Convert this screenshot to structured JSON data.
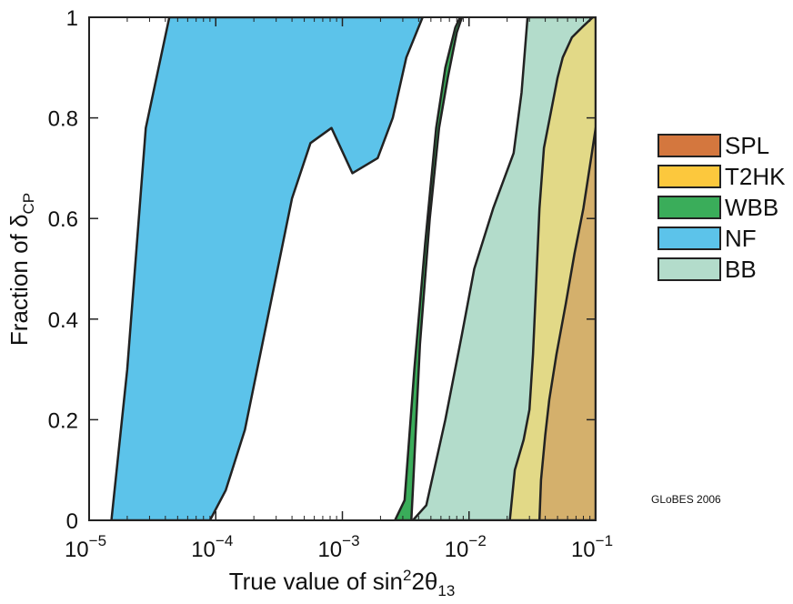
{
  "chart_data": {
    "type": "area",
    "xlabel": {
      "prefix": "True value of sin",
      "sup": "2",
      "mid": "2θ",
      "sub": "13"
    },
    "ylabel": {
      "prefix": "Fraction of δ",
      "sub": "CP"
    },
    "x_scale": "log",
    "xlim": [
      1e-05,
      0.1
    ],
    "ylim": [
      0,
      1
    ],
    "x_ticks": [
      {
        "value": 1e-05,
        "base": "10",
        "exp": "−5"
      },
      {
        "value": 0.0001,
        "base": "10",
        "exp": "−4"
      },
      {
        "value": 0.001,
        "base": "10",
        "exp": "−3"
      },
      {
        "value": 0.01,
        "base": "10",
        "exp": "−2"
      },
      {
        "value": 0.1,
        "base": "10",
        "exp": "−1"
      }
    ],
    "y_ticks": [
      {
        "value": 0,
        "label": "0"
      },
      {
        "value": 0.2,
        "label": "0.2"
      },
      {
        "value": 0.4,
        "label": "0.4"
      },
      {
        "value": 0.6,
        "label": "0.6"
      },
      {
        "value": 0.8,
        "label": "0.8"
      },
      {
        "value": 1,
        "label": "1"
      }
    ],
    "grid": false,
    "legend_position": "right",
    "series": [
      {
        "name": "BB",
        "color": "#b3dccb",
        "boundary": [
          [
            0.0036,
            0
          ],
          [
            0.0046,
            0.03
          ],
          [
            0.0065,
            0.2
          ],
          [
            0.0088,
            0.37
          ],
          [
            0.011,
            0.5
          ],
          [
            0.0155,
            0.62
          ],
          [
            0.0225,
            0.73
          ],
          [
            0.026,
            0.85
          ],
          [
            0.029,
            1
          ],
          [
            0.1,
            1
          ],
          [
            0.1,
            0
          ]
        ]
      },
      {
        "name": "T2HK",
        "color": "#e2d987",
        "boundary": [
          [
            0.021,
            0
          ],
          [
            0.023,
            0.1
          ],
          [
            0.027,
            0.16
          ],
          [
            0.03,
            0.22
          ],
          [
            0.032,
            0.33
          ],
          [
            0.034,
            0.48
          ],
          [
            0.036,
            0.62
          ],
          [
            0.039,
            0.74
          ],
          [
            0.045,
            0.82
          ],
          [
            0.05,
            0.88
          ],
          [
            0.055,
            0.92
          ],
          [
            0.065,
            0.96
          ],
          [
            0.078,
            0.98
          ],
          [
            0.095,
            1
          ],
          [
            0.1,
            1
          ],
          [
            0.1,
            0
          ]
        ]
      },
      {
        "name": "SPL",
        "color": "#d4b06c",
        "boundary": [
          [
            0.036,
            0
          ],
          [
            0.037,
            0.08
          ],
          [
            0.04,
            0.17
          ],
          [
            0.043,
            0.24
          ],
          [
            0.049,
            0.33
          ],
          [
            0.058,
            0.43
          ],
          [
            0.068,
            0.53
          ],
          [
            0.08,
            0.62
          ],
          [
            0.092,
            0.72
          ],
          [
            0.1,
            0.78
          ],
          [
            0.1,
            0
          ]
        ]
      },
      {
        "name": "WBB",
        "color": "#3aad5a",
        "boundary": [
          [
            0.0026,
            0
          ],
          [
            0.0031,
            0.04
          ],
          [
            0.0037,
            0.3
          ],
          [
            0.0045,
            0.55
          ],
          [
            0.0055,
            0.78
          ],
          [
            0.0065,
            0.9
          ],
          [
            0.0078,
            0.98
          ],
          [
            0.0085,
            1
          ],
          [
            0.0088,
            1
          ],
          [
            0.008,
            0.97
          ],
          [
            0.0068,
            0.88
          ],
          [
            0.0058,
            0.78
          ],
          [
            0.0049,
            0.6
          ],
          [
            0.0041,
            0.35
          ],
          [
            0.0036,
            0.06
          ],
          [
            0.0035,
            0
          ]
        ]
      },
      {
        "name": "NF",
        "color": "#5cc3ea",
        "boundary": [
          [
            1.5e-05,
            0
          ],
          [
            2e-05,
            0.3
          ],
          [
            2.8e-05,
            0.78
          ],
          [
            4.3e-05,
            1
          ],
          [
            0.0043,
            1
          ],
          [
            0.0032,
            0.92
          ],
          [
            0.0025,
            0.8
          ],
          [
            0.0019,
            0.72
          ],
          [
            0.0012,
            0.69
          ],
          [
            0.00082,
            0.78
          ],
          [
            0.00056,
            0.75
          ],
          [
            0.0004,
            0.64
          ],
          [
            0.00017,
            0.18
          ],
          [
            0.00012,
            0.06
          ],
          [
            9e-05,
            0
          ]
        ]
      }
    ],
    "legend": [
      {
        "name": "SPL",
        "color": "#d4773e"
      },
      {
        "name": "T2HK",
        "color": "#fcc83d"
      },
      {
        "name": "WBB",
        "color": "#3aad5a"
      },
      {
        "name": "NF",
        "color": "#5cc3ea"
      },
      {
        "name": "BB",
        "color": "#b3dccb"
      }
    ],
    "annotation": "GLoBES 2006"
  }
}
